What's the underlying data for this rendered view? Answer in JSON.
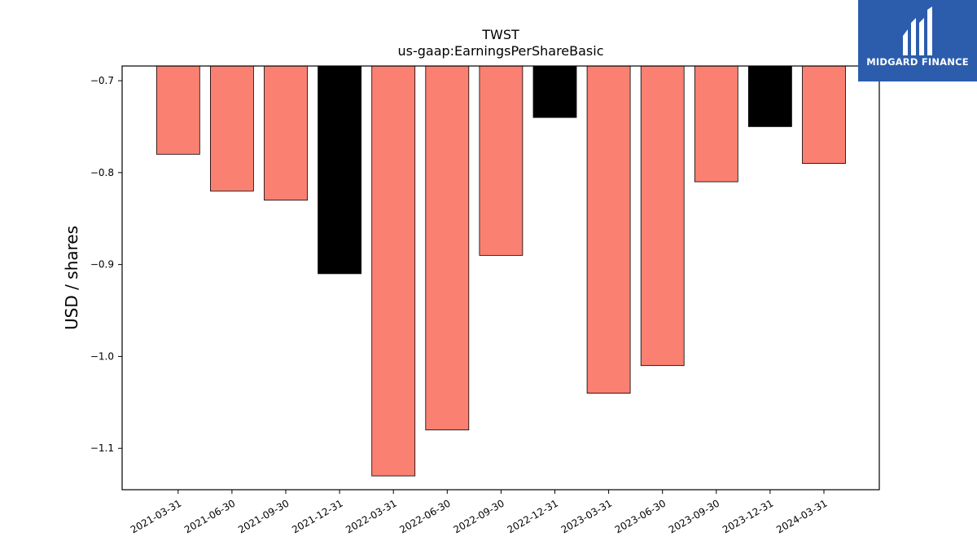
{
  "logo": {
    "brand_name": "MIDGARD FINANCE",
    "icon": "midgard-logo-icon"
  },
  "chart_data": {
    "type": "bar",
    "title": "TWST",
    "subtitle": "us-gaap:EarningsPerShareBasic",
    "xlabel": "",
    "ylabel": "USD / shares",
    "categories": [
      "2021-03-31",
      "2021-06-30",
      "2021-09-30",
      "2021-12-31",
      "2022-03-31",
      "2022-06-30",
      "2022-09-30",
      "2022-12-31",
      "2023-03-31",
      "2023-06-30",
      "2023-09-30",
      "2023-12-31",
      "2024-03-31"
    ],
    "values": [
      -0.78,
      -0.82,
      -0.83,
      -0.91,
      -1.13,
      -1.08,
      -0.89,
      -0.74,
      -1.04,
      -1.01,
      -0.81,
      -0.75,
      -0.79
    ],
    "ylim": [
      -1.145,
      -0.684
    ],
    "yticks": [
      -0.7,
      -0.8,
      -0.9,
      -1.0,
      -1.1
    ],
    "ytick_labels": [
      "−0.7",
      "−0.8",
      "−0.9",
      "−1.0",
      "−1.1"
    ],
    "colors": {
      "quarter": "#fa8072",
      "year_end": "#000000",
      "edge": "#000000"
    },
    "grid": false,
    "legend": "none"
  }
}
